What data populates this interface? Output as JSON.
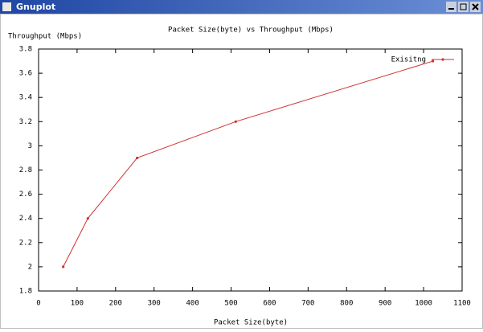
{
  "window": {
    "title": "Gnuplot"
  },
  "chart_data": {
    "type": "line",
    "title": "Packet Size(byte) vs Throughput (Mbps)",
    "x_label": "Packet Size(byte)",
    "y_label": "Throughput (Mbps)",
    "x": [
      64,
      128,
      256,
      512,
      1024
    ],
    "series": [
      {
        "name": "Exisitng",
        "color": "#d03030",
        "values": [
          2.0,
          2.4,
          2.9,
          3.2,
          3.7
        ]
      }
    ],
    "xlim": [
      0,
      1100
    ],
    "xticks": [
      0,
      100,
      200,
      300,
      400,
      500,
      600,
      700,
      800,
      900,
      1000,
      1100
    ],
    "ylim": [
      1.8,
      3.8
    ],
    "yticks": [
      1.8,
      2,
      2.2,
      2.4,
      2.6,
      2.8,
      3,
      3.2,
      3.4,
      3.6,
      3.8
    ],
    "grid": false,
    "legend": "top-right"
  }
}
